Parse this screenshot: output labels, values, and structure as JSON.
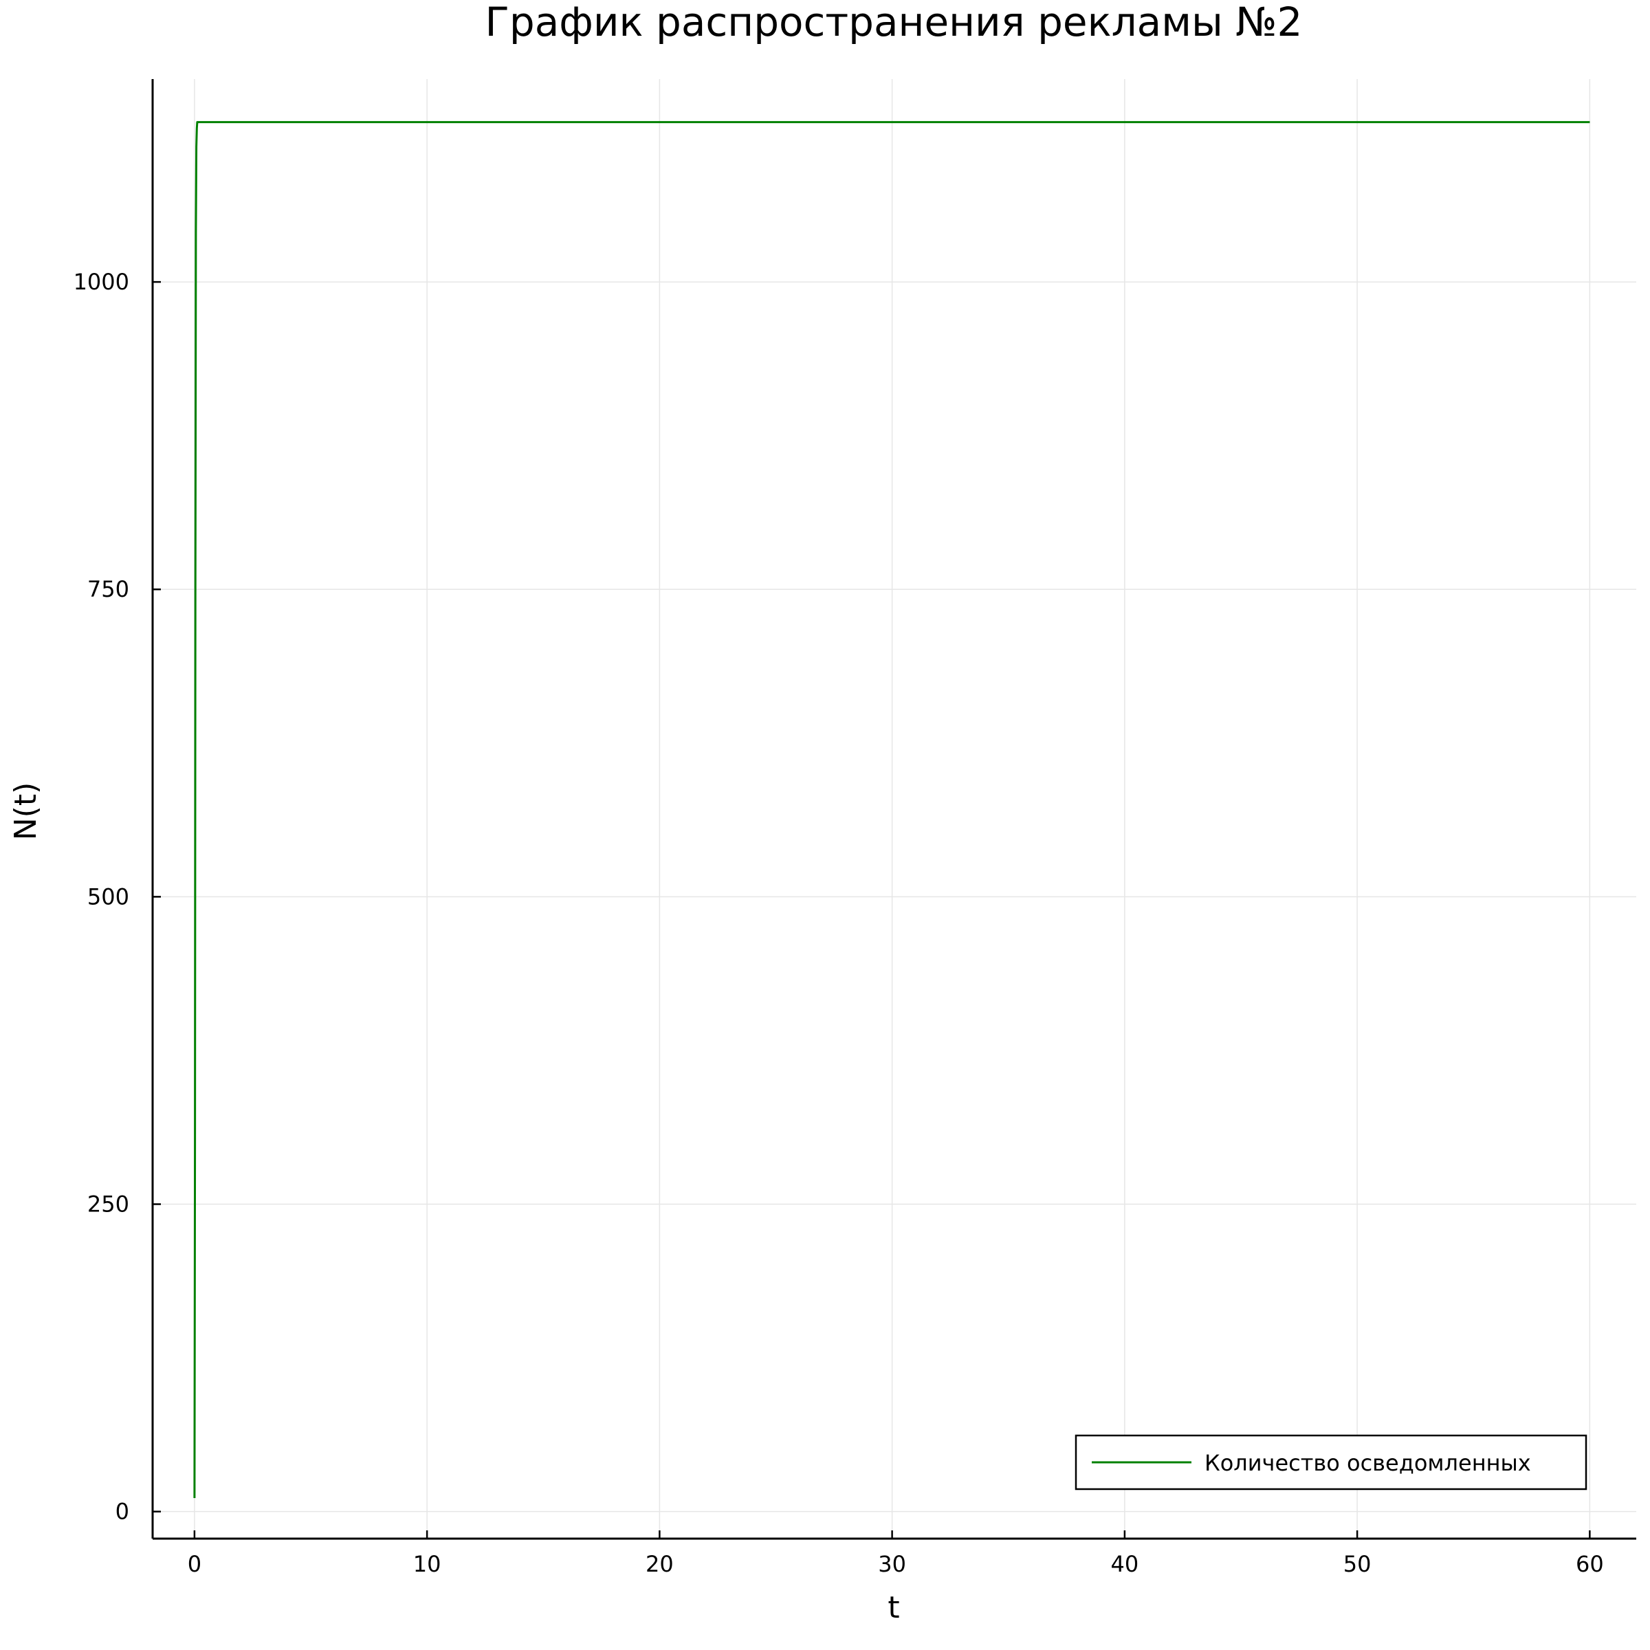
{
  "chart_data": {
    "type": "line",
    "title": "График распространения рекламы №2",
    "xlabel": "t",
    "ylabel": "N(t)",
    "xlim": [
      -1.8,
      62
    ],
    "ylim": [
      -22,
      1165
    ],
    "xticks": [
      0,
      10,
      20,
      30,
      40,
      50,
      60
    ],
    "yticks": [
      0,
      250,
      500,
      750,
      1000
    ],
    "grid": true,
    "legend_position": "bottom-right",
    "series": [
      {
        "name": "Количество осведомленных",
        "color": "#008000",
        "x": [
          0,
          0.02,
          0.04,
          0.06,
          0.08,
          0.1,
          0.12,
          0.15,
          0.2,
          1,
          5,
          10,
          20,
          30,
          40,
          50,
          60
        ],
        "y": [
          11,
          300,
          750,
          1040,
          1110,
          1125,
          1130,
          1130,
          1130,
          1130,
          1130,
          1130,
          1130,
          1130,
          1130,
          1130,
          1130
        ]
      }
    ]
  }
}
